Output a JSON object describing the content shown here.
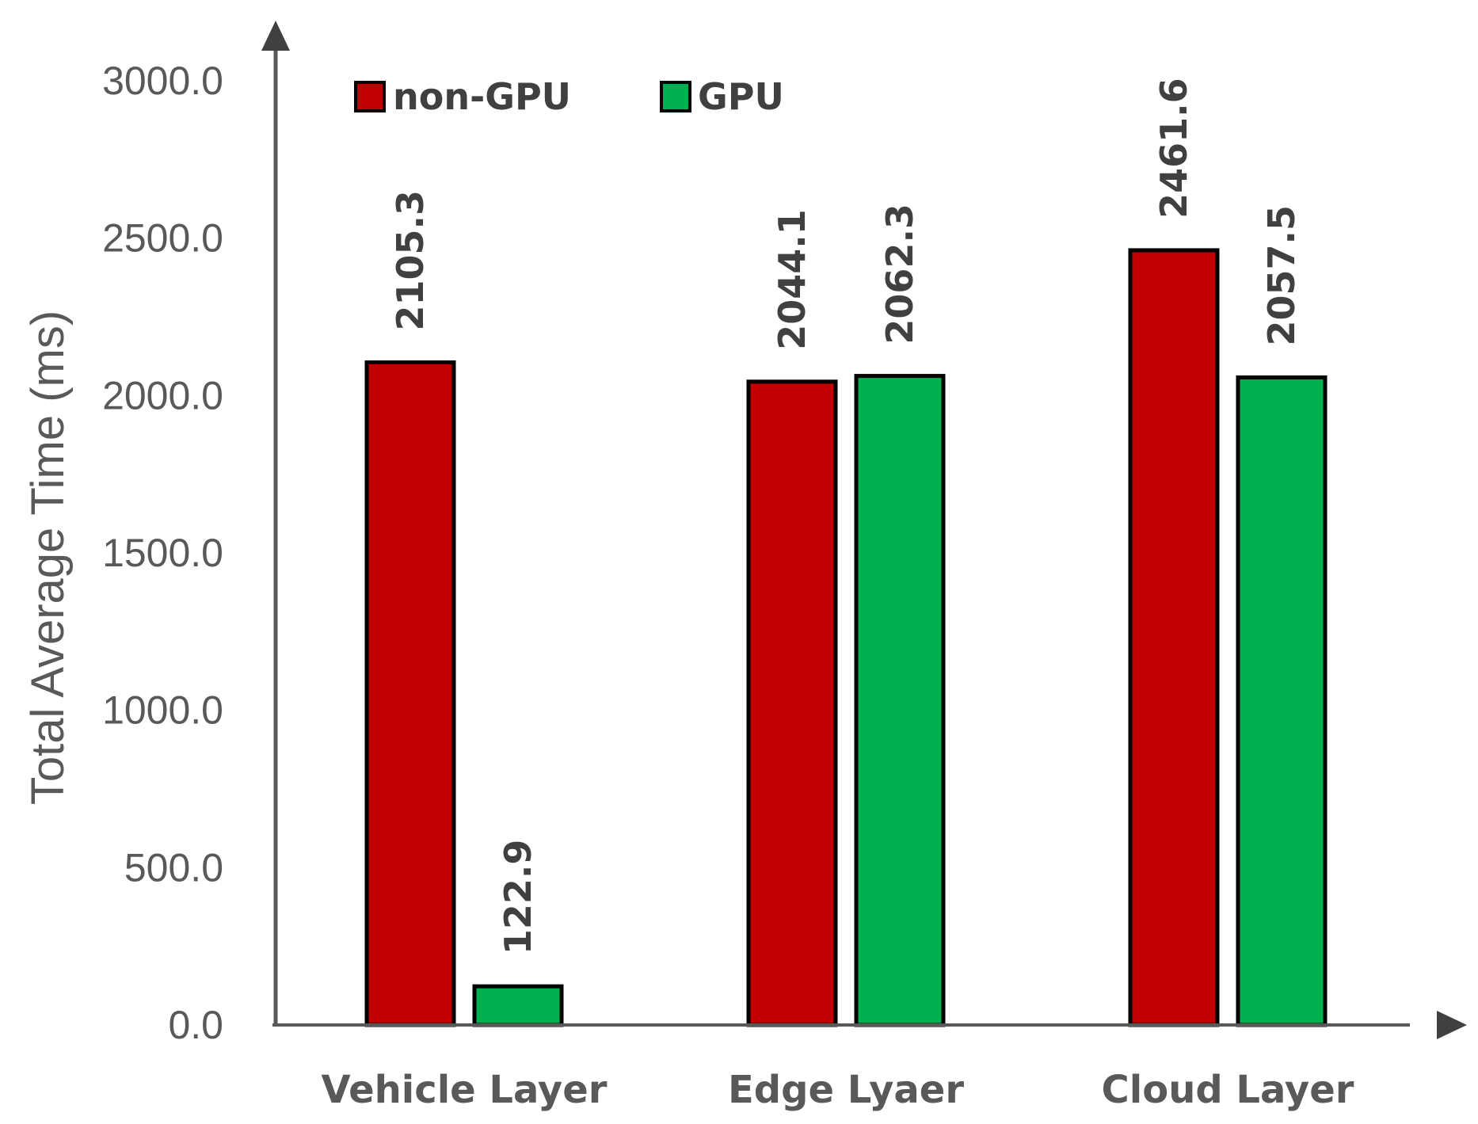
{
  "chart_data": {
    "type": "bar",
    "title": "",
    "xlabel": "",
    "ylabel": "Total Average Time (ms)",
    "categories": [
      "Vehicle Layer",
      "Edge Lyaer",
      "Cloud Layer"
    ],
    "series": [
      {
        "name": "non-GPU",
        "color": "#C00000",
        "values": [
          2105.3,
          2044.1,
          2461.6
        ],
        "labels": [
          "2105.3",
          "2044.1",
          "2461.6"
        ]
      },
      {
        "name": "GPU",
        "color": "#00B050",
        "values": [
          122.9,
          2062.3,
          2057.5
        ],
        "labels": [
          "122.9",
          "2062.3",
          "2057.5"
        ]
      }
    ],
    "ylim": [
      0,
      3000
    ],
    "yticks": [
      0,
      500,
      1000,
      1500,
      2000,
      2500,
      3000
    ],
    "ytick_labels": [
      "0.0",
      "500.0",
      "1000.0",
      "1500.0",
      "2000.0",
      "2500.0",
      "3000.0"
    ],
    "grid": false,
    "legend_position": "top-left",
    "data_labels_rotated": true,
    "axis_color": "#595959"
  }
}
